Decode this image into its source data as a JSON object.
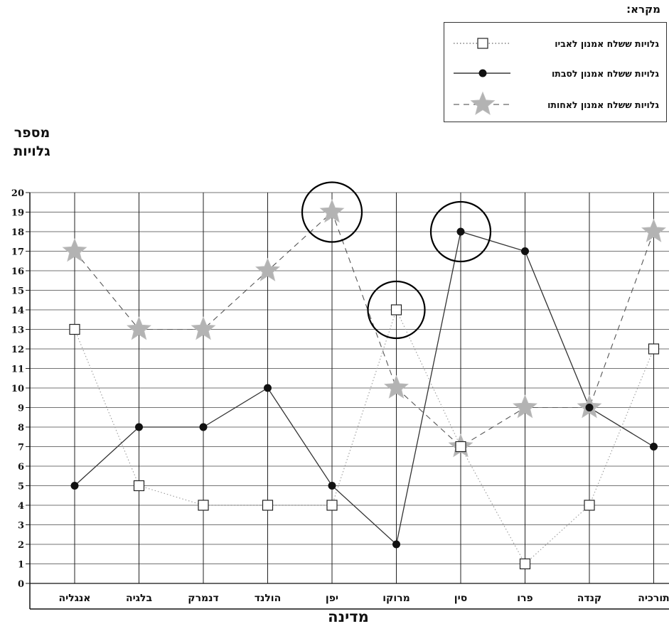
{
  "chart_data": {
    "type": "line",
    "categories": [
      "אנגליה",
      "בלגיה",
      "דנמרק",
      "הולנד",
      "יפן",
      "מרוקו",
      "סין",
      "פרו",
      "קנדה",
      "תורכיה"
    ],
    "series": [
      {
        "name": "גלויות ששלח אמנון לאביו",
        "marker": "square",
        "line": "dotted",
        "color": "#999999",
        "values": [
          13,
          5,
          4,
          4,
          4,
          14,
          7,
          1,
          4,
          12
        ]
      },
      {
        "name": "גלויות ששלח אמנון לסבתו",
        "marker": "circle",
        "line": "solid",
        "color": "#111111",
        "values": [
          5,
          8,
          8,
          10,
          5,
          2,
          18,
          17,
          9,
          7
        ]
      },
      {
        "name": "גלויות ששלח אמנון לאחותו",
        "marker": "star",
        "line": "dashed",
        "color": "#b3b3b3",
        "values": [
          17,
          13,
          13,
          16,
          19,
          10,
          7,
          9,
          9,
          18
        ]
      }
    ],
    "ylabel": [
      "מספר",
      "גלויות"
    ],
    "xlabel": "מדינה",
    "ylim": [
      0,
      20
    ],
    "yticks": [
      0,
      1,
      2,
      3,
      4,
      5,
      6,
      7,
      8,
      9,
      10,
      11,
      12,
      13,
      14,
      15,
      16,
      17,
      18,
      19,
      20
    ],
    "grid": true,
    "legend": {
      "title": "מקרא:",
      "placement": "top-right"
    },
    "circled_points": [
      {
        "series": 2,
        "category": "יפן"
      },
      {
        "series": 0,
        "category": "מרוקו"
      },
      {
        "series": 1,
        "category": "סין"
      }
    ]
  }
}
